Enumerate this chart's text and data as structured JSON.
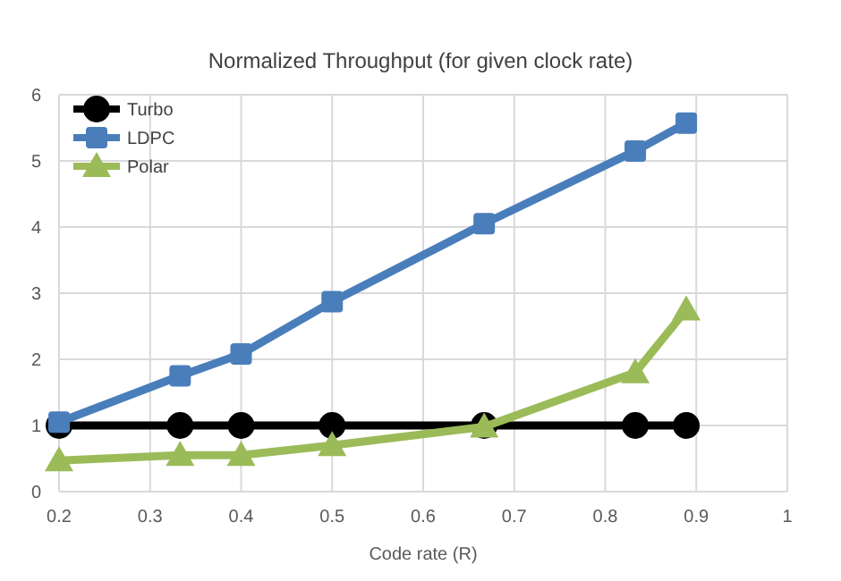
{
  "chart_data": {
    "type": "line",
    "title": "Normalized Throughput (for given clock rate)",
    "xlabel": "Code rate (R)",
    "x": [
      0.2,
      0.333,
      0.4,
      0.5,
      0.667,
      0.833,
      0.889
    ],
    "series": [
      {
        "name": "Turbo",
        "color": "#000000",
        "marker": "circle",
        "values": [
          1,
          1,
          1,
          1,
          1,
          1,
          1
        ]
      },
      {
        "name": "LDPC",
        "color": "#4a7ebb",
        "marker": "square",
        "values": [
          1.05,
          1.75,
          2.08,
          2.87,
          4.05,
          5.15,
          5.57
        ]
      },
      {
        "name": "Polar",
        "color": "#9bbb59",
        "marker": "triangle",
        "values": [
          0.47,
          0.55,
          0.55,
          0.7,
          0.98,
          1.8,
          2.75
        ]
      }
    ],
    "xlim": [
      0.2,
      1
    ],
    "xticks": [
      0.2,
      0.3,
      0.4,
      0.5,
      0.6,
      0.7,
      0.8,
      0.9,
      1
    ],
    "ylim": [
      0,
      6
    ],
    "yticks": [
      0,
      1,
      2,
      3,
      4,
      5,
      6
    ],
    "grid": true,
    "legend": "top left"
  }
}
